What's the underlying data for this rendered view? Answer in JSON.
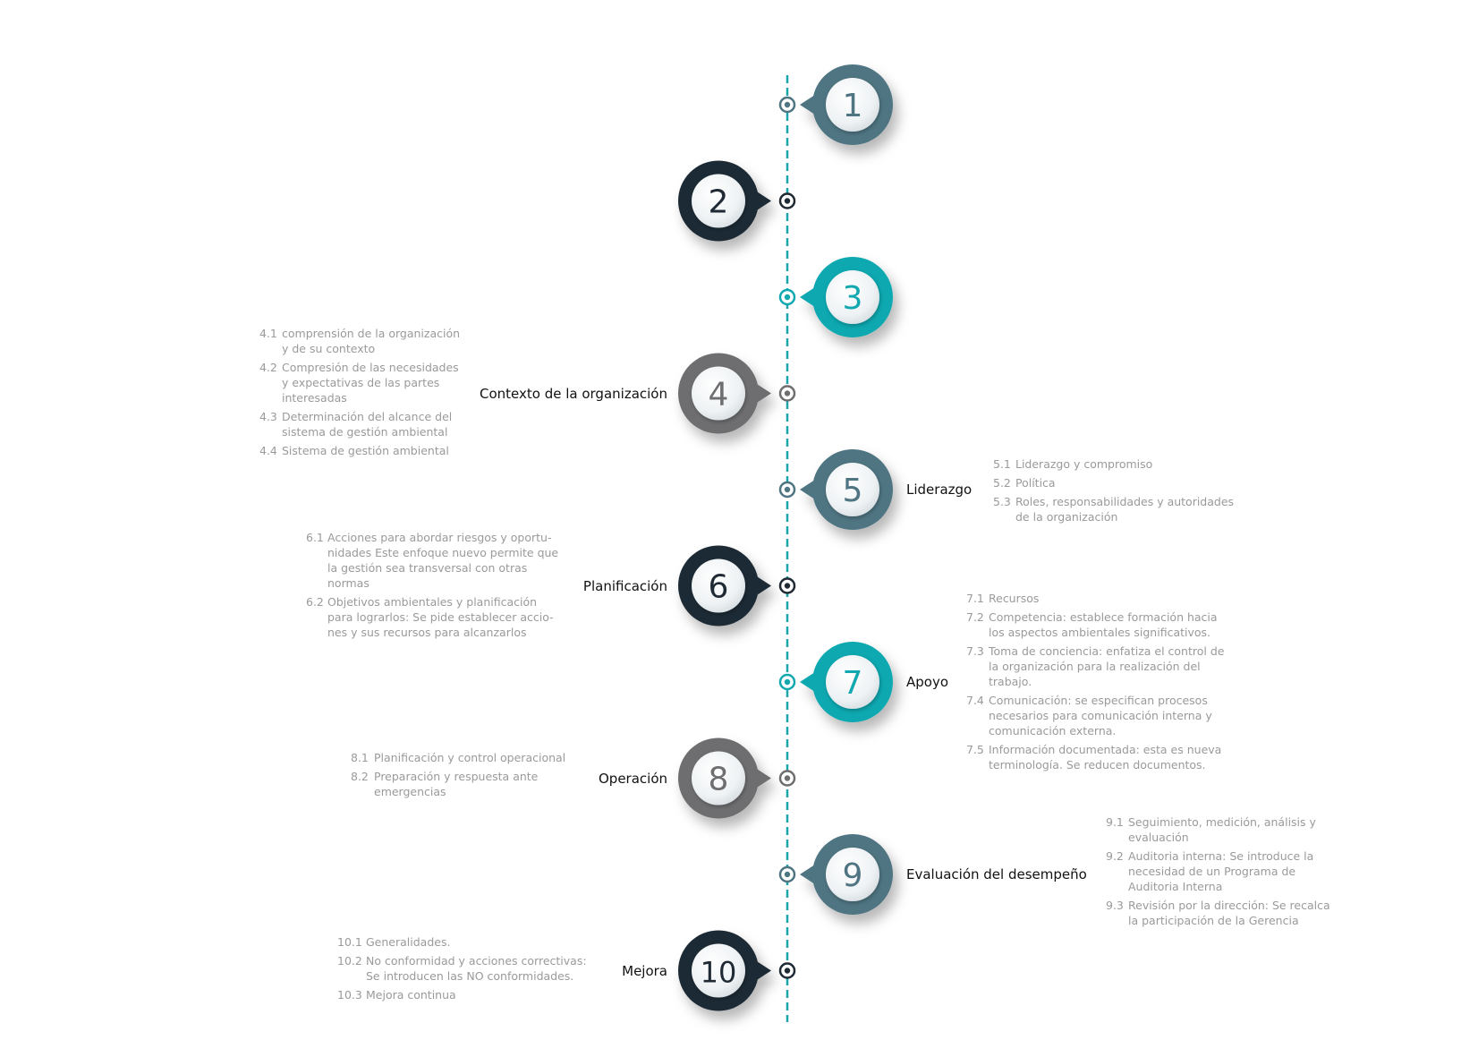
{
  "colors": {
    "axis": "#1aa5ab",
    "steel": "#4f7482",
    "dark": "#1f2a34",
    "teal": "#11a8b0",
    "gray": "#6e6e70"
  },
  "steps": [
    {
      "num": "1",
      "variant": "steel",
      "side": "right",
      "title": "",
      "items": []
    },
    {
      "num": "2",
      "variant": "dark",
      "side": "left",
      "title": "",
      "items": []
    },
    {
      "num": "3",
      "variant": "teal",
      "side": "right",
      "title": "",
      "items": []
    },
    {
      "num": "4",
      "variant": "gray",
      "side": "left",
      "title": "Contexto de la organización",
      "items": [
        {
          "n": "4.1",
          "t": "comprensión de la organización y de su contexto"
        },
        {
          "n": "4.2",
          "t": "Compresión de las necesidades y expectativas de las partes interesadas"
        },
        {
          "n": "4.3",
          "t": "Determinación del alcance del sistema de gestión  ambiental"
        },
        {
          "n": "4.4",
          "t": "Sistema de gestión ambiental"
        }
      ]
    },
    {
      "num": "5",
      "variant": "steel",
      "side": "right",
      "title": "Liderazgo",
      "items": [
        {
          "n": "5.1",
          "t": "Liderazgo y compromiso"
        },
        {
          "n": "5.2",
          "t": "Política"
        },
        {
          "n": "5.3",
          "t": "Roles, responsabilidades y autoridades de la organización"
        }
      ]
    },
    {
      "num": "6",
      "variant": "dark",
      "side": "left",
      "title": "Planificación",
      "items": [
        {
          "n": "6.1",
          "t": "Acciones para abordar riesgos y oportu-nidades Este enfoque nuevo permite que la gestión sea transversal con otras normas"
        },
        {
          "n": "6.2",
          "t": "Objetivos ambientales y planificación para lograrlos: Se pide establecer accio-nes y sus recursos para alcanzarlos"
        }
      ]
    },
    {
      "num": "7",
      "variant": "teal",
      "side": "right",
      "title": "Apoyo",
      "items": [
        {
          "n": "7.1",
          "t": "Recursos"
        },
        {
          "n": "7.2",
          "t": "Competencia: establece formación hacia los aspectos ambientales significativos."
        },
        {
          "n": "7.3",
          "t": "Toma de conciencia: enfatiza el control de la organización para la realización del trabajo."
        },
        {
          "n": "7.4",
          "t": "Comunicación: se especifican procesos necesarios para comunicación interna y comunicación externa."
        },
        {
          "n": "7.5",
          "t": "Información documentada: esta es nueva terminología. Se reducen documentos."
        }
      ]
    },
    {
      "num": "8",
      "variant": "gray",
      "side": "left",
      "title": "Operación",
      "items": [
        {
          "n": "8.1",
          "t": "Planificación y control operacional"
        },
        {
          "n": "8.2",
          "t": "Preparación y respuesta ante emergencias"
        }
      ]
    },
    {
      "num": "9",
      "variant": "steel",
      "side": "right",
      "title": "Evaluación del desempeño",
      "items": [
        {
          "n": "9.1",
          "t": "Seguimiento, medición, análisis y evaluación"
        },
        {
          "n": "9.2",
          "t": "Auditoria interna: Se introduce la necesidad de un Programa de Auditoria Interna"
        },
        {
          "n": "9.3",
          "t": "Revisión por la dirección: Se recalca la participación de la Gerencia"
        }
      ]
    },
    {
      "num": "10",
      "variant": "dark",
      "side": "left",
      "title": "Mejora",
      "items": [
        {
          "n": "10.1",
          "t": "Generalidades."
        },
        {
          "n": "10.2",
          "t": "No conformidad y acciones correctivas: Se introducen las NO conformidades."
        },
        {
          "n": "10.3",
          "t": "Mejora continua"
        }
      ]
    }
  ]
}
